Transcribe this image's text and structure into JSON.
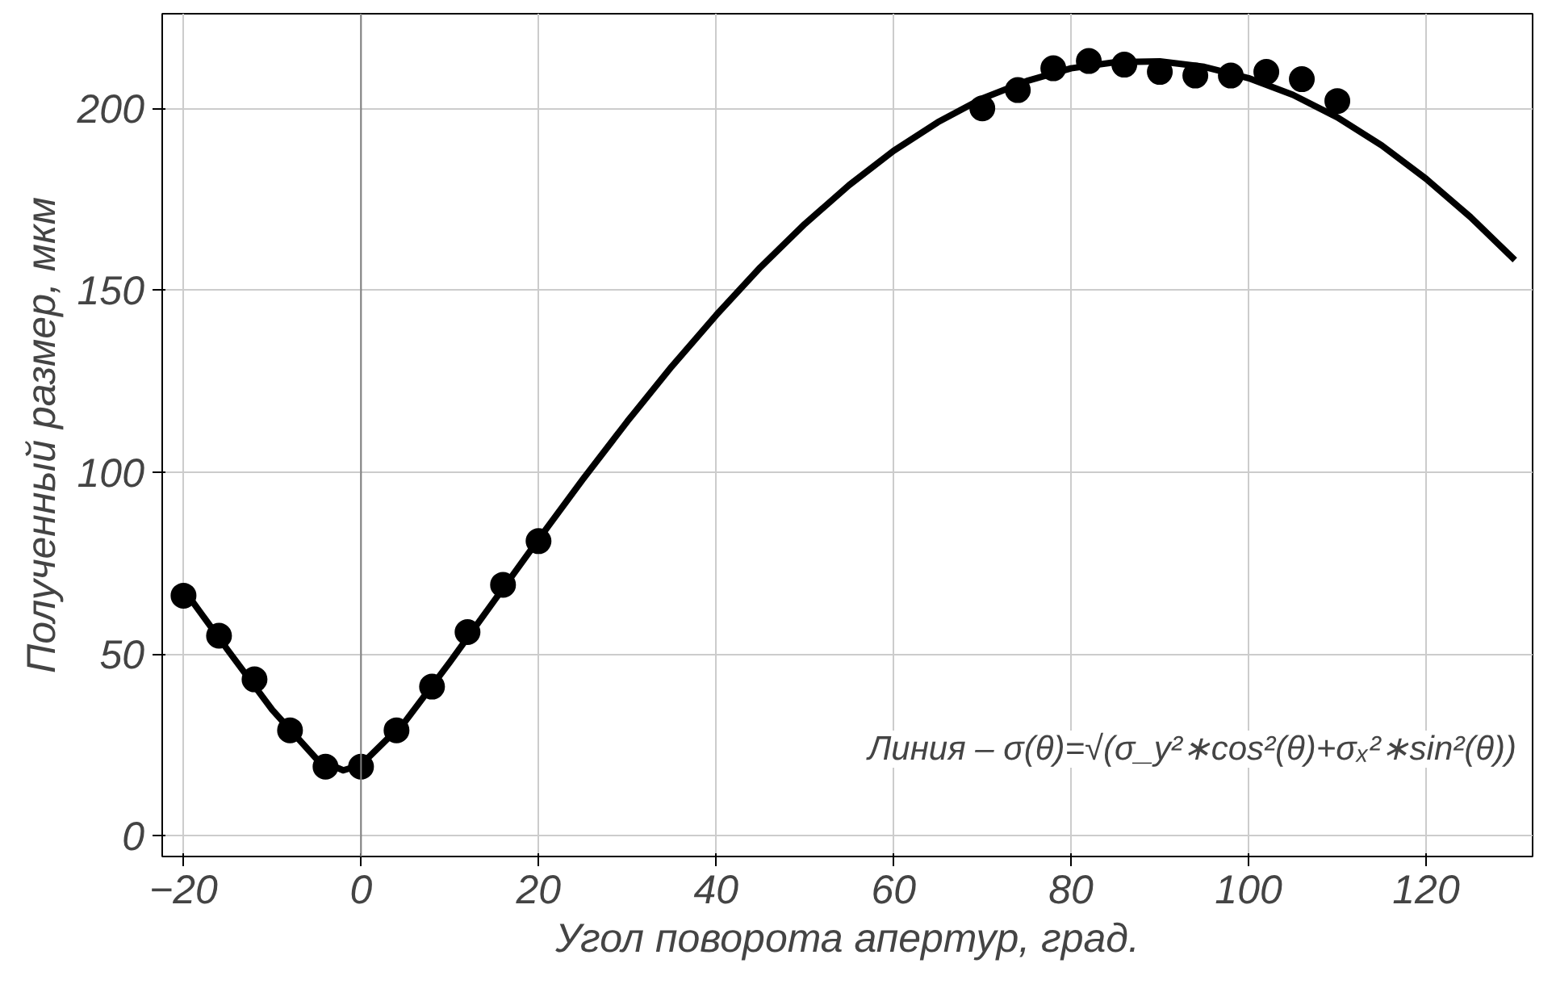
{
  "chart_data": {
    "type": "line",
    "xlabel": "Угол поворота апертур, град.",
    "ylabel": "Полученный размер, мкм",
    "xlim": [
      -22.4,
      132
    ],
    "ylim": [
      -5.7,
      226
    ],
    "xticks": [
      {
        "value": -20,
        "label": "−20"
      },
      0,
      20,
      40,
      60,
      80,
      100,
      120
    ],
    "yticks": [
      0,
      50,
      100,
      150,
      200
    ],
    "grid": true,
    "series": [
      {
        "color": "#000000",
        "marker": "none",
        "x": [
          -20,
          -15,
          -10,
          -5,
          -2,
          0,
          5,
          10,
          15,
          20,
          25,
          30,
          35,
          40,
          45,
          50,
          55,
          60,
          65,
          70,
          75,
          80,
          85,
          90,
          95,
          100,
          105,
          110,
          115,
          120,
          125,
          130
        ],
        "values": [
          67.8,
          51.0,
          34.6,
          21.1,
          18,
          19.5,
          31.5,
          47.7,
          64.6,
          81.5,
          98.0,
          113.9,
          129.0,
          143.1,
          156.3,
          168.2,
          178.9,
          188.3,
          196.2,
          202.7,
          207.5,
          211,
          212.7,
          212.9,
          211.4,
          208.3,
          203.7,
          197.5,
          189.8,
          180.6,
          170.1,
          158.3
        ]
      },
      {
        "type": "scatter",
        "color": "#000000",
        "marker": "circle",
        "x": [
          -20,
          -16,
          -12,
          -8,
          -4,
          0,
          4,
          8,
          12,
          16,
          20,
          70,
          74,
          78,
          82,
          86,
          90,
          94,
          98,
          102,
          106,
          110
        ],
        "values": [
          66,
          55,
          43,
          29,
          19,
          19,
          29,
          41,
          56,
          69,
          81,
          200,
          205,
          211,
          213,
          212,
          210,
          209,
          209,
          210,
          208,
          202
        ]
      }
    ],
    "ref_lines": [
      {
        "axis": "x",
        "value": 0,
        "color": "#808080"
      }
    ],
    "annotations": [
      "Линия – σ(θ)=√(σ_y²∗cos²(θ)+σₓ²∗sin²(θ))"
    ]
  }
}
